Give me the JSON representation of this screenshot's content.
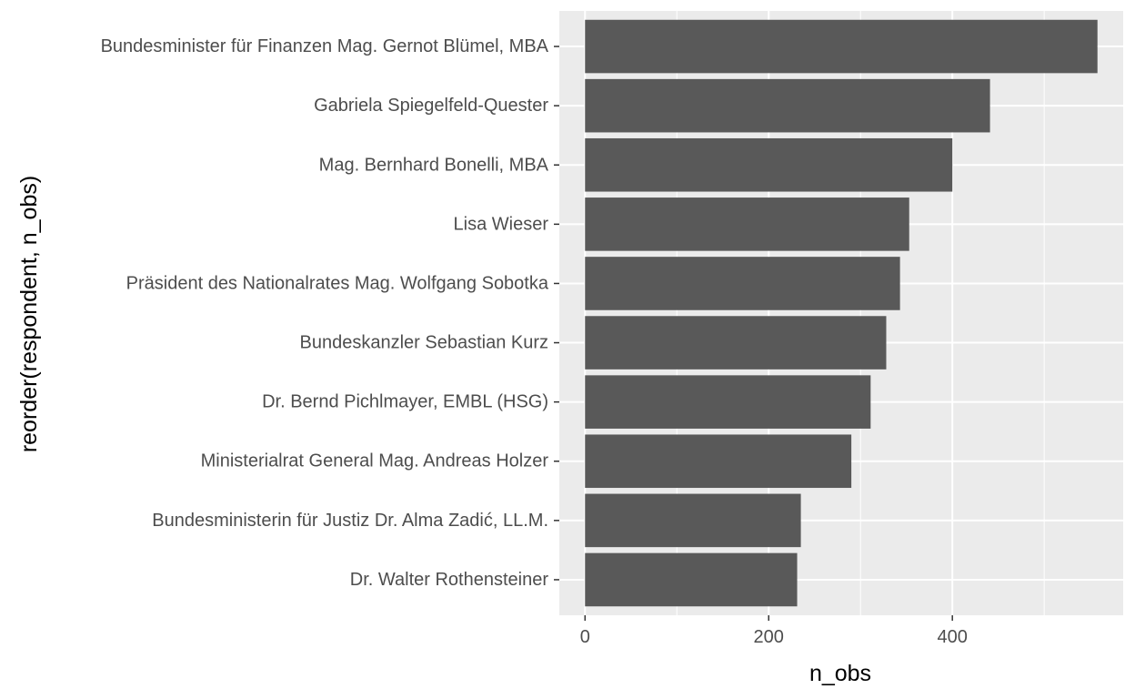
{
  "chart_data": {
    "type": "bar",
    "orientation": "horizontal",
    "xlabel": "n_obs",
    "ylabel": "reorder(respondent, n_obs)",
    "categories": [
      "Bundesminister für Finanzen Mag. Gernot Blümel, MBA",
      "Gabriela Spiegelfeld-Quester",
      "Mag. Bernhard Bonelli, MBA",
      "Lisa Wieser",
      "Präsident des Nationalrates Mag. Wolfgang Sobotka",
      "Bundeskanzler Sebastian Kurz",
      "Dr. Bernd Pichlmayer, EMBL (HSG)",
      "Ministerialrat General Mag. Andreas Holzer",
      "Bundesministerin für Justiz Dr. Alma Zadić, LL.M.",
      "Dr. Walter Rothensteiner"
    ],
    "values": [
      558,
      441,
      400,
      353,
      343,
      328,
      311,
      290,
      235,
      231
    ],
    "xlim": [
      -28,
      586
    ],
    "x_ticks": [
      0,
      200,
      400
    ],
    "x_tick_labels": [
      "0",
      "200",
      "400"
    ],
    "grid": true,
    "bar_color": "#595959",
    "panel_color": "#ebebeb",
    "grid_color": "#ffffff"
  }
}
